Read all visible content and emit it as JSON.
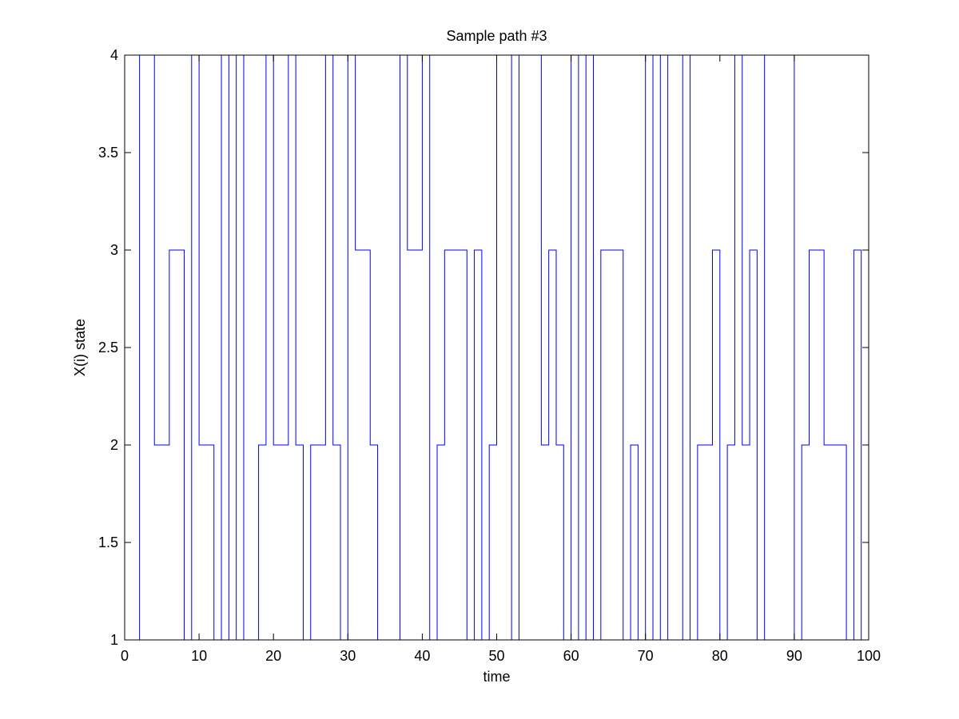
{
  "chart_data": {
    "type": "line",
    "step": true,
    "title": "Sample path #3",
    "xlabel": "time",
    "ylabel": "X(i) state",
    "xlim": [
      0,
      100
    ],
    "ylim": [
      1,
      4
    ],
    "xticks": [
      0,
      10,
      20,
      30,
      40,
      50,
      60,
      70,
      80,
      90,
      100
    ],
    "yticks": [
      1,
      1.5,
      2,
      2.5,
      3,
      3.5,
      4
    ],
    "xtick_labels": [
      "0",
      "10",
      "20",
      "30",
      "40",
      "50",
      "60",
      "70",
      "80",
      "90",
      "100"
    ],
    "ytick_labels": [
      "1",
      "1.5",
      "2",
      "2.5",
      "3",
      "3.5",
      "4"
    ],
    "grid": false,
    "box": true,
    "line_color": "#0000ff",
    "series": [
      {
        "x": [
          0,
          1,
          2,
          3,
          4,
          5,
          6,
          7,
          8,
          9,
          10,
          11,
          12,
          13,
          14,
          15,
          16,
          17,
          18,
          19,
          20,
          21,
          22,
          23,
          24,
          25,
          26,
          27,
          28,
          29,
          30,
          31,
          32,
          33,
          34,
          35,
          36,
          37,
          38,
          39,
          40,
          41,
          42,
          43,
          44,
          45,
          46,
          47,
          48,
          49,
          50,
          51,
          52,
          53,
          54,
          55,
          56,
          57,
          58,
          59,
          60,
          61,
          62,
          63,
          64,
          65,
          66,
          67,
          68,
          69,
          70,
          71,
          72,
          73,
          74,
          75,
          76,
          77,
          78,
          79,
          80,
          81,
          82,
          83,
          84,
          85,
          86,
          87,
          88,
          89,
          90,
          91,
          92,
          93,
          94,
          95,
          96,
          97,
          98,
          99,
          100
        ],
        "y": [
          1,
          1,
          4,
          4,
          2,
          2,
          3,
          3,
          1,
          4,
          2,
          2,
          1,
          4,
          1,
          4,
          1,
          1,
          2,
          4,
          2,
          2,
          4,
          2,
          1,
          2,
          2,
          4,
          2,
          1,
          4,
          3,
          3,
          2,
          1,
          1,
          1,
          4,
          3,
          3,
          4,
          1,
          2,
          3,
          3,
          3,
          1,
          3,
          1,
          2,
          4,
          4,
          1,
          4,
          4,
          4,
          2,
          3,
          2,
          1,
          4,
          1,
          4,
          1,
          3,
          3,
          3,
          1,
          2,
          1,
          4,
          1,
          4,
          1,
          1,
          4,
          1,
          2,
          2,
          3,
          1,
          2,
          4,
          2,
          3,
          1,
          4,
          4,
          4,
          4,
          1,
          2,
          3,
          3,
          2,
          2,
          2,
          1,
          3,
          1,
          4
        ]
      }
    ]
  }
}
